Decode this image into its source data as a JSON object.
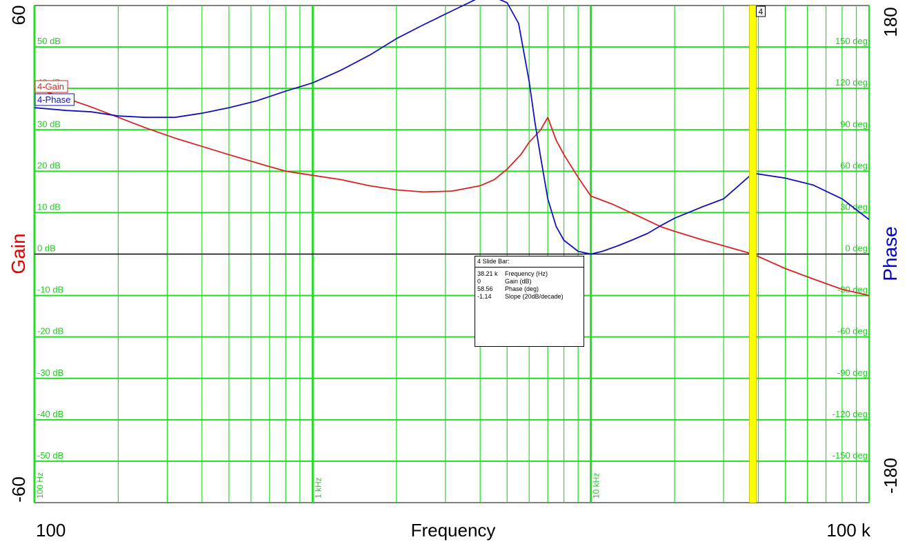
{
  "chart_data": {
    "type": "line",
    "xlabel": "Frequency",
    "x_scale": "log",
    "xlim": [
      100,
      100000
    ],
    "x_end_labels": [
      "100",
      "100 k"
    ],
    "x_grid_labels": [
      {
        "value": 100,
        "label": "100 Hz"
      },
      {
        "value": 1000,
        "label": "1 kHz"
      },
      {
        "value": 10000,
        "label": "10 kHz"
      }
    ],
    "left_axis": {
      "label": "Gain",
      "color": "#e00000",
      "range": [
        -60,
        60
      ],
      "end_labels": [
        "60",
        "-60"
      ],
      "tick_values": [
        50,
        40,
        30,
        20,
        10,
        0,
        -10,
        -20,
        -30,
        -40,
        -50
      ],
      "tick_labels": [
        "50 dB",
        "40 dB",
        "30 dB",
        "20 dB",
        "10 dB",
        "0 dB",
        "-10 dB",
        "-20 dB",
        "-30 dB",
        "-40 dB",
        "-50 dB"
      ]
    },
    "right_axis": {
      "label": "Phase",
      "color": "#0000c8",
      "range": [
        -180,
        180
      ],
      "end_labels": [
        "180",
        "-180"
      ],
      "tick_values": [
        150,
        120,
        90,
        60,
        30,
        0,
        -30,
        -60,
        -90,
        -120,
        -150
      ],
      "tick_labels": [
        "150 deg",
        "120 deg",
        "90 deg",
        "60 deg",
        "30 deg",
        "0 deg",
        "-30 deg",
        "-60 deg",
        "-90 deg",
        "-120 deg",
        "-150 deg"
      ]
    },
    "grid": true,
    "grid_color": "#22dd22",
    "series": [
      {
        "name": "4-Gain",
        "axis": "left",
        "color": "#dd2020",
        "x": [
          100,
          125,
          160,
          200,
          250,
          320,
          400,
          500,
          630,
          800,
          1000,
          1260,
          1600,
          2000,
          2500,
          3160,
          4000,
          4500,
          5000,
          5600,
          6000,
          6600,
          7000,
          7500,
          8000,
          9000,
          10000,
          12000,
          15000,
          18000,
          20000,
          25000,
          30000,
          38210,
          50000,
          63000,
          80000,
          100000
        ],
        "y": [
          40,
          38,
          35.5,
          33,
          30.5,
          28,
          26,
          24,
          22,
          20,
          19,
          18,
          16.5,
          15.5,
          15,
          15.2,
          16.5,
          18,
          20.5,
          24,
          27,
          30,
          33,
          27.5,
          24,
          18.5,
          14,
          12,
          9,
          6.5,
          5.5,
          3.5,
          2,
          0,
          -3.5,
          -6,
          -8.5,
          -10
        ]
      },
      {
        "name": "4-Phase",
        "axis": "right",
        "color": "#1010c0",
        "x": [
          100,
          130,
          160,
          200,
          250,
          320,
          400,
          500,
          630,
          800,
          1000,
          1260,
          1600,
          2000,
          2500,
          3160,
          4000,
          4500,
          5000,
          5500,
          6000,
          6300,
          6600,
          7000,
          7500,
          8000,
          9000,
          10000,
          11000,
          12500,
          14000,
          16000,
          18000,
          20000,
          25000,
          30000,
          38210,
          50000,
          63000,
          80000,
          100000
        ],
        "y": [
          106,
          104,
          103,
          100,
          99,
          99,
          102,
          106,
          111,
          118,
          124,
          133,
          144,
          156,
          166,
          176,
          186,
          186,
          182,
          167,
          125,
          95,
          70,
          40,
          20,
          10,
          2,
          0,
          2,
          6,
          10,
          15,
          21,
          26,
          34,
          40,
          58.56,
          55,
          50,
          40,
          25
        ]
      }
    ],
    "legend": {
      "placement": "top-left",
      "entries": [
        "4-Gain",
        "4-Phase"
      ]
    },
    "cursor": {
      "id": "4",
      "x": 38210,
      "color": "#ffff00"
    },
    "readout": {
      "title": "4  Slide Bar:",
      "rows": [
        {
          "value": "38.21 k",
          "label": "Frequency (Hz)"
        },
        {
          "value": "0",
          "label": "Gain (dB)"
        },
        {
          "value": "58.56",
          "label": "Phase (deg)"
        },
        {
          "value": "-1.14",
          "label": "Slope (20dB/decade)"
        }
      ]
    }
  }
}
